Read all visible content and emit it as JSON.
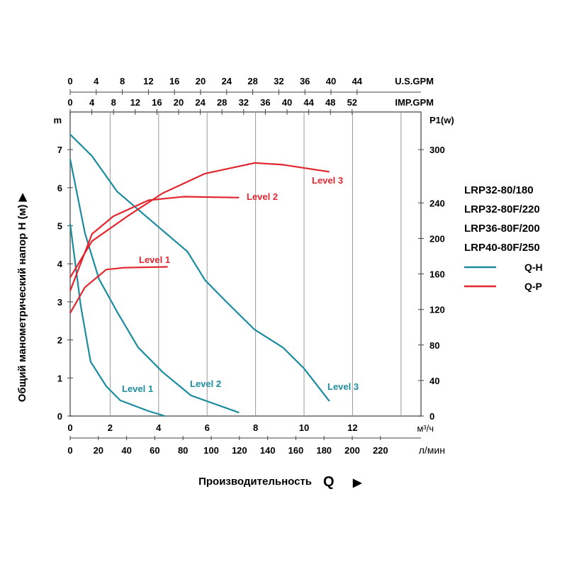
{
  "chart_data": {
    "type": "line",
    "ylabel": "Общий манометрический напор H (м) ▶",
    "xlabel": "Производительность",
    "xlabel_symbol": "Q",
    "xlabel_arrow": "▶",
    "left_axis": {
      "unit": "m",
      "ylim": [
        0,
        7.5
      ],
      "ticks": [
        0,
        1,
        2,
        3,
        4,
        5,
        6,
        7
      ]
    },
    "right_axis": {
      "unit": "P1(w)",
      "ylim": [
        0,
        300
      ],
      "ticks": [
        0,
        40,
        80,
        120,
        160,
        200,
        240,
        300
      ]
    },
    "x_axis": {
      "unit": "м³/ч",
      "xlim": [
        0,
        14
      ],
      "ticks": [
        0,
        2,
        4,
        6,
        8,
        10,
        12
      ]
    },
    "x_axis_lpm": {
      "unit": "л/мин",
      "ticks": [
        0,
        20,
        40,
        60,
        80,
        100,
        120,
        140,
        160,
        180,
        200,
        220
      ]
    },
    "top_axis_us": {
      "unit": "U.S.GPM",
      "ticks": [
        0,
        4,
        8,
        12,
        16,
        20,
        24,
        28,
        32,
        36,
        40,
        44
      ]
    },
    "top_axis_imp": {
      "unit": "IMP.GPM",
      "ticks": [
        0,
        4,
        8,
        12,
        16,
        20,
        24,
        28,
        32,
        36,
        40,
        44,
        48,
        52
      ]
    },
    "grid": "vertical",
    "models": [
      "LRP32-80/180",
      "LRP32-80F/220",
      "LRP36-80F/200",
      "LRP40-80F/250"
    ],
    "legend": [
      {
        "name": "Q-H",
        "color": "#1b8c9e"
      },
      {
        "name": "Q-P",
        "color": "#e2262f"
      }
    ],
    "legend_placement": "right",
    "series": [
      {
        "name": "Q-H",
        "label": "Level 1",
        "color": "#1b8c9e",
        "axis": "left",
        "points": [
          [
            0,
            5.05
          ],
          [
            0.45,
            2.9
          ],
          [
            0.87,
            1.43
          ],
          [
            1.54,
            0.78
          ],
          [
            2.14,
            0.41
          ],
          [
            3.34,
            0.13
          ],
          [
            4.04,
            0
          ]
        ]
      },
      {
        "name": "Q-H",
        "label": "Level 2",
        "color": "#1b8c9e",
        "axis": "left",
        "points": [
          [
            0,
            6.75
          ],
          [
            0.63,
            4.8
          ],
          [
            1.23,
            3.6
          ],
          [
            2.0,
            2.74
          ],
          [
            2.9,
            1.8
          ],
          [
            3.95,
            1.15
          ],
          [
            5.15,
            0.54
          ],
          [
            7.2,
            0.09
          ]
        ]
      },
      {
        "name": "Q-H",
        "label": "Level 3",
        "color": "#1b8c9e",
        "axis": "left",
        "points": [
          [
            0,
            7.4
          ],
          [
            0.93,
            6.83
          ],
          [
            2.0,
            5.9
          ],
          [
            3.04,
            5.35
          ],
          [
            5.0,
            4.32
          ],
          [
            5.75,
            3.57
          ],
          [
            6.66,
            3.0
          ],
          [
            7.86,
            2.27
          ],
          [
            9.07,
            1.8
          ],
          [
            9.97,
            1.25
          ],
          [
            11.05,
            0.39
          ]
        ]
      },
      {
        "name": "Q-P",
        "label": "Level 1",
        "color": "#e2262f",
        "axis": "right",
        "points": [
          [
            0,
            116
          ],
          [
            0.63,
            145
          ],
          [
            1.54,
            165
          ],
          [
            2.3,
            167
          ],
          [
            4.16,
            168
          ]
        ]
      },
      {
        "name": "Q-P",
        "label": "Level 2",
        "color": "#e2262f",
        "axis": "right",
        "points": [
          [
            0,
            141
          ],
          [
            0.93,
            205
          ],
          [
            1.84,
            225
          ],
          [
            3.34,
            243
          ],
          [
            4.85,
            247
          ],
          [
            7.2,
            246
          ]
        ]
      },
      {
        "name": "Q-P",
        "label": "Level 3",
        "color": "#e2262f",
        "axis": "right",
        "points": [
          [
            0,
            156
          ],
          [
            0.93,
            197
          ],
          [
            2.44,
            225
          ],
          [
            3.95,
            251
          ],
          [
            5.75,
            273
          ],
          [
            7.86,
            285
          ],
          [
            9.07,
            283
          ],
          [
            11.05,
            275
          ]
        ]
      }
    ]
  }
}
